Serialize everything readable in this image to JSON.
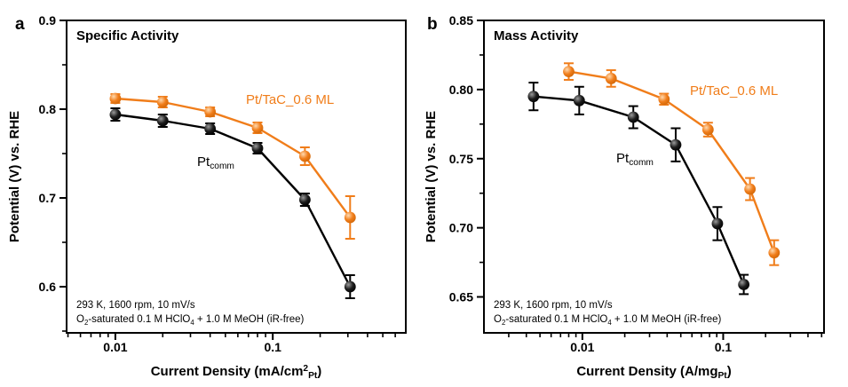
{
  "figure": {
    "background": "#ffffff",
    "frame_color": "#000000",
    "text_color": "#000000"
  },
  "chart_data": [
    {
      "panel_letter": "a",
      "type": "line",
      "title": "Specific Activity",
      "xlabel": "Current Density (mA/cm^{2}_{Pt})",
      "ylabel": "Potential (V) vs. RHE",
      "xscale": "log",
      "grid": false,
      "legend_position": "inline-labels",
      "xlim": [
        0.0049,
        0.7
      ],
      "ylim": [
        0.548,
        0.9
      ],
      "xticks": [
        {
          "v": 0.01,
          "label": "0.01"
        },
        {
          "v": 0.1,
          "label": "0.1"
        }
      ],
      "yticks": [
        {
          "v": 0.6,
          "label": "0.6"
        },
        {
          "v": 0.7,
          "label": "0.7"
        },
        {
          "v": 0.8,
          "label": "0.8"
        },
        {
          "v": 0.9,
          "label": "0.9"
        }
      ],
      "yticks_minor": [
        0.55,
        0.65,
        0.75,
        0.85
      ],
      "annotation_lines": [
        "293 K, 1600 rpm, 10 mV/s",
        "O_{2}-saturated 0.1 M HClO_{4} + 1.0 M MeOH (iR-free)"
      ],
      "series": [
        {
          "name": "Pt_{comm}",
          "color": "#000000",
          "marker_gradient": [
            "#9a9a9a",
            "#1c1c1c",
            "#000000"
          ],
          "x": [
            0.01,
            0.02,
            0.04,
            0.08,
            0.16,
            0.31
          ],
          "y": [
            0.794,
            0.787,
            0.778,
            0.756,
            0.698,
            0.6
          ],
          "yerr": [
            0.007,
            0.007,
            0.006,
            0.006,
            0.007,
            0.013
          ]
        },
        {
          "name": "Pt/TaC_0.6 ML",
          "color": "#F07D1A",
          "marker_gradient": [
            "#ffd9ae",
            "#f07d1a",
            "#cf6608"
          ],
          "x": [
            0.01,
            0.02,
            0.04,
            0.08,
            0.16,
            0.31
          ],
          "y": [
            0.812,
            0.808,
            0.797,
            0.779,
            0.747,
            0.678
          ],
          "yerr": [
            0.005,
            0.006,
            0.005,
            0.006,
            0.01,
            0.024
          ]
        }
      ]
    },
    {
      "panel_letter": "b",
      "type": "line",
      "title": "Mass Activity",
      "xlabel": "Current Density (A/mg_{Pt})",
      "ylabel": "Potential (V) vs. RHE",
      "xscale": "log",
      "grid": false,
      "legend_position": "inline-labels",
      "xlim": [
        0.002,
        0.52
      ],
      "ylim": [
        0.624,
        0.85
      ],
      "xticks": [
        {
          "v": 0.01,
          "label": "0.01"
        },
        {
          "v": 0.1,
          "label": "0.1"
        }
      ],
      "yticks": [
        {
          "v": 0.65,
          "label": "0.65"
        },
        {
          "v": 0.7,
          "label": "0.70"
        },
        {
          "v": 0.75,
          "label": "0.75"
        },
        {
          "v": 0.8,
          "label": "0.80"
        },
        {
          "v": 0.85,
          "label": "0.85"
        }
      ],
      "yticks_minor": [
        0.675,
        0.725,
        0.775,
        0.825
      ],
      "annotation_lines": [
        "293 K, 1600 rpm, 10 mV/s",
        "O_{2}-saturated 0.1 M HClO_{4} + 1.0 M MeOH (iR-free)"
      ],
      "series": [
        {
          "name": "Pt_{comm}",
          "color": "#000000",
          "marker_gradient": [
            "#9a9a9a",
            "#1c1c1c",
            "#000000"
          ],
          "x": [
            0.0045,
            0.0095,
            0.023,
            0.046,
            0.091,
            0.14
          ],
          "y": [
            0.795,
            0.792,
            0.78,
            0.76,
            0.703,
            0.659
          ],
          "yerr": [
            0.01,
            0.01,
            0.008,
            0.012,
            0.012,
            0.007
          ]
        },
        {
          "name": "Pt/TaC_0.6 ML",
          "color": "#F07D1A",
          "marker_gradient": [
            "#ffd9ae",
            "#f07d1a",
            "#cf6608"
          ],
          "x": [
            0.008,
            0.016,
            0.038,
            0.078,
            0.155,
            0.23
          ],
          "y": [
            0.813,
            0.808,
            0.793,
            0.771,
            0.728,
            0.682
          ],
          "yerr": [
            0.006,
            0.006,
            0.004,
            0.005,
            0.008,
            0.009
          ]
        }
      ]
    }
  ]
}
